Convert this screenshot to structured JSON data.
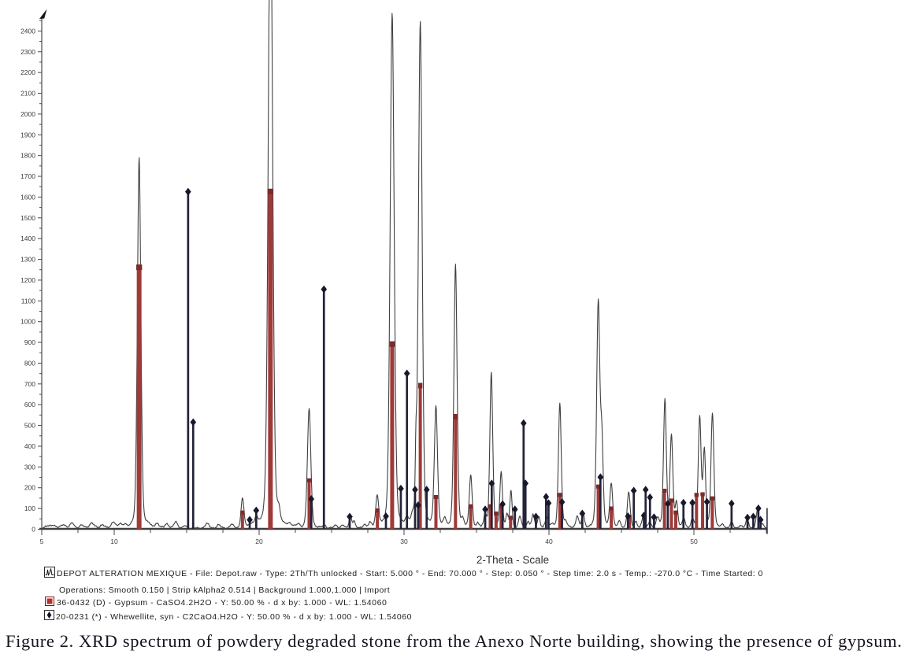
{
  "figure": {
    "caption": "Figure 2. XRD spectrum of powdery degraded stone from the Anexo Norte building, showing the presence of gypsum."
  },
  "legend": {
    "line1": "DEPOT ALTERATION MEXIQUE - File: Depot.raw - Type: 2Th/Th unlocked - Start: 5.000 ° - End: 70.000 ° - Step: 0.050 ° - Step time: 2.0 s - Temp.: -270.0 °C - Time Started: 0",
    "line2": "Operations: Smooth 0.150 | Strip kAlpha2 0.514 | Background 1.000,1.000 | Import",
    "line3": "36-0432 (D) -  Gypsum - CaSO4.2H2O - Y: 50.00 % - d x by: 1.000 - WL: 1.54060",
    "line4": "20-0231 (*) - Whewellite, syn - C2CaO4.H2O - Y: 50.00 % - d x by: 1.000 - WL: 1.54060"
  },
  "chart_data": {
    "type": "line",
    "title": "",
    "xlabel": "2-Theta - Scale",
    "ylabel": "",
    "x_range": [
      5,
      55.05
    ],
    "y_range": [
      0,
      2500
    ],
    "x_major_ticks": [
      5,
      10,
      20,
      30,
      40,
      50
    ],
    "x_minor_tick_step": 2.5,
    "y_label_ticks": [
      0,
      100,
      200,
      300,
      400,
      500,
      600,
      700,
      800,
      900,
      1000,
      1100,
      1200,
      1300,
      1400,
      1500,
      1600,
      1700,
      1800,
      1900,
      2000,
      2100,
      2200,
      2300,
      2400
    ],
    "y_minor_tick_step": 50,
    "grid": false,
    "legend_position": "below",
    "colors": {
      "trace": "#404040",
      "gypsum_bar": "#9e3a39",
      "gypsum_cap": "#7c2b2b",
      "whewellite_bar": "#232339",
      "whewellite_diamond": "#18182c",
      "axis": "#4a4a4a",
      "tick_label": "#3c3c3c"
    },
    "series": [
      {
        "name": "DEPOT ALTERATION MEXIQUE (measured XRD trace)",
        "type": "line",
        "peaks_note": "each entry = [two_theta_deg, intensity_counts, sigma_deg]",
        "peaks": [
          [
            5.45,
            10,
            0.18
          ],
          [
            5.8,
            14,
            0.15
          ],
          [
            6.5,
            18,
            0.16
          ],
          [
            7.1,
            24,
            0.14
          ],
          [
            7.75,
            14,
            0.15
          ],
          [
            8.45,
            26,
            0.16
          ],
          [
            9.2,
            18,
            0.14
          ],
          [
            9.95,
            32,
            0.13
          ],
          [
            10.4,
            16,
            0.12
          ],
          [
            10.75,
            14,
            0.1
          ],
          [
            11.72,
            1790,
            0.12
          ],
          [
            12.4,
            12,
            0.12
          ],
          [
            12.95,
            16,
            0.13
          ],
          [
            13.6,
            22,
            0.13
          ],
          [
            14.25,
            34,
            0.12
          ],
          [
            14.9,
            12,
            0.1
          ],
          [
            16.4,
            22,
            0.14
          ],
          [
            17.2,
            16,
            0.13
          ],
          [
            18.1,
            18,
            0.12
          ],
          [
            18.85,
            140,
            0.1
          ],
          [
            19.5,
            14,
            0.1
          ],
          [
            19.8,
            40,
            0.09
          ],
          [
            20.78,
            3200,
            0.15
          ],
          [
            21.35,
            58,
            0.1
          ],
          [
            22.1,
            14,
            0.12
          ],
          [
            22.7,
            12,
            0.1
          ],
          [
            23.45,
            575,
            0.12
          ],
          [
            24.5,
            14,
            0.1
          ],
          [
            25.3,
            14,
            0.12
          ],
          [
            25.75,
            16,
            0.1
          ],
          [
            26.3,
            60,
            0.09
          ],
          [
            26.55,
            34,
            0.08
          ],
          [
            27.25,
            16,
            0.1
          ],
          [
            27.65,
            20,
            0.1
          ],
          [
            28.15,
            150,
            0.1
          ],
          [
            29.18,
            2480,
            0.14
          ],
          [
            30.82,
            260,
            0.05
          ],
          [
            30.2,
            30,
            0.1
          ],
          [
            30.6,
            36,
            0.1
          ],
          [
            31.12,
            2430,
            0.13
          ],
          [
            32.2,
            575,
            0.11
          ],
          [
            32.8,
            36,
            0.09
          ],
          [
            33.55,
            1270,
            0.11
          ],
          [
            34.05,
            36,
            0.1
          ],
          [
            34.6,
            250,
            0.1
          ],
          [
            35.1,
            20,
            0.1
          ],
          [
            35.6,
            62,
            0.09
          ],
          [
            36.02,
            750,
            0.1
          ],
          [
            36.7,
            270,
            0.09
          ],
          [
            37.1,
            60,
            0.08
          ],
          [
            37.38,
            180,
            0.08
          ],
          [
            38.0,
            55,
            0.1
          ],
          [
            38.55,
            30,
            0.1
          ],
          [
            38.9,
            62,
            0.1
          ],
          [
            39.3,
            55,
            0.09
          ],
          [
            39.85,
            52,
            0.1
          ],
          [
            40.2,
            20,
            0.1
          ],
          [
            40.75,
            600,
            0.1
          ],
          [
            41.15,
            30,
            0.1
          ],
          [
            41.95,
            58,
            0.1
          ],
          [
            42.35,
            68,
            0.09
          ],
          [
            43.4,
            1085,
            0.11
          ],
          [
            43.65,
            400,
            0.09
          ],
          [
            44.3,
            212,
            0.1
          ],
          [
            44.85,
            28,
            0.1
          ],
          [
            45.5,
            175,
            0.1
          ],
          [
            46.0,
            30,
            0.1
          ],
          [
            46.5,
            55,
            0.1
          ],
          [
            46.95,
            30,
            0.1
          ],
          [
            47.5,
            46,
            0.1
          ],
          [
            48.0,
            618,
            0.1
          ],
          [
            48.45,
            440,
            0.1
          ],
          [
            48.8,
            120,
            0.09
          ],
          [
            49.3,
            45,
            0.09
          ],
          [
            49.9,
            40,
            0.09
          ],
          [
            50.4,
            535,
            0.1
          ],
          [
            50.72,
            370,
            0.09
          ],
          [
            51.28,
            552,
            0.1
          ],
          [
            52.0,
            16,
            0.1
          ],
          [
            52.6,
            28,
            0.1
          ],
          [
            53.2,
            14,
            0.1
          ],
          [
            53.68,
            44,
            0.1
          ],
          [
            54.4,
            90,
            0.1
          ],
          [
            54.75,
            20,
            0.1
          ]
        ]
      },
      {
        "name": "36-0432 (D) - Gypsum - CaSO4.2H2O",
        "type": "bars",
        "bars_note": "each entry = [two_theta_deg, intensity_counts]",
        "bars": [
          [
            11.72,
            1275
          ],
          [
            18.85,
            90
          ],
          [
            20.78,
            1640
          ],
          [
            23.45,
            245
          ],
          [
            28.16,
            100
          ],
          [
            29.18,
            905
          ],
          [
            31.12,
            705
          ],
          [
            32.2,
            165
          ],
          [
            33.55,
            555
          ],
          [
            34.6,
            120
          ],
          [
            35.95,
            120
          ],
          [
            36.35,
            85
          ],
          [
            36.7,
            120
          ],
          [
            37.35,
            65
          ],
          [
            40.75,
            175
          ],
          [
            43.4,
            215
          ],
          [
            44.3,
            110
          ],
          [
            45.55,
            70
          ],
          [
            47.97,
            195
          ],
          [
            48.45,
            148
          ],
          [
            48.75,
            90
          ],
          [
            50.18,
            175
          ],
          [
            50.6,
            178
          ],
          [
            51.27,
            158
          ]
        ]
      },
      {
        "name": "20-0231 (*) - Whewellite, syn - C2CaO4.H2O",
        "type": "bars-with-diamond-markers",
        "bars_note": "each entry = [two_theta_deg, intensity_counts]",
        "bars": [
          [
            15.1,
            1620
          ],
          [
            15.45,
            510
          ],
          [
            19.35,
            40
          ],
          [
            19.8,
            85
          ],
          [
            23.6,
            140
          ],
          [
            24.47,
            1150
          ],
          [
            26.25,
            55
          ],
          [
            28.75,
            57
          ],
          [
            29.78,
            190
          ],
          [
            30.2,
            745
          ],
          [
            30.76,
            185
          ],
          [
            30.97,
            110
          ],
          [
            31.56,
            185
          ],
          [
            35.6,
            90
          ],
          [
            36.05,
            215
          ],
          [
            36.8,
            115
          ],
          [
            37.65,
            90
          ],
          [
            38.25,
            505
          ],
          [
            38.38,
            215
          ],
          [
            39.1,
            55
          ],
          [
            39.8,
            150
          ],
          [
            39.97,
            120
          ],
          [
            40.9,
            125
          ],
          [
            42.3,
            70
          ],
          [
            43.55,
            245
          ],
          [
            45.45,
            57
          ],
          [
            45.85,
            180
          ],
          [
            46.55,
            60
          ],
          [
            46.67,
            185
          ],
          [
            46.97,
            148
          ],
          [
            47.25,
            52
          ],
          [
            48.2,
            117
          ],
          [
            49.28,
            122
          ],
          [
            49.9,
            122
          ],
          [
            50.9,
            126
          ],
          [
            52.6,
            118
          ],
          [
            53.7,
            50
          ],
          [
            54.1,
            55
          ],
          [
            54.45,
            95
          ],
          [
            54.6,
            40
          ]
        ]
      }
    ]
  }
}
